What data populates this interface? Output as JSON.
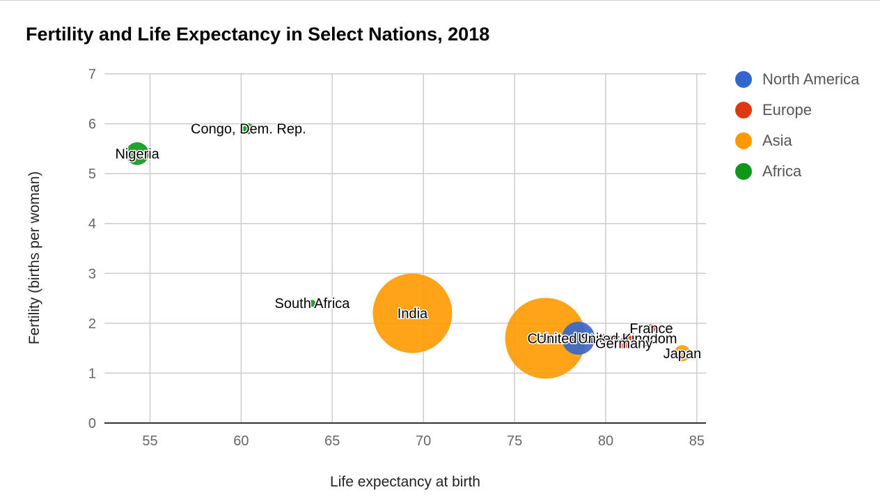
{
  "chart_data": {
    "type": "bubble",
    "title": "Fertility and Life Expectancy in Select Nations, 2018",
    "xlabel": "Life expectancy at birth",
    "ylabel": "Fertility (births per woman)",
    "xlim": [
      52.5,
      85.5
    ],
    "ylim": [
      0,
      7
    ],
    "xticks": [
      55,
      60,
      65,
      70,
      75,
      80,
      85
    ],
    "yticks": [
      0,
      1,
      2,
      3,
      4,
      5,
      6,
      7
    ],
    "grid": true,
    "legend_position": "right",
    "groups": [
      {
        "name": "North America",
        "color": "#3366cc"
      },
      {
        "name": "Europe",
        "color": "#dc3912"
      },
      {
        "name": "Asia",
        "color": "#ff9900"
      },
      {
        "name": "Africa",
        "color": "#109618"
      }
    ],
    "points": [
      {
        "label": "Nigeria",
        "x": 54.3,
        "y": 5.4,
        "group": "Africa",
        "size": 196
      },
      {
        "label": "Congo, Dem. Rep.",
        "x": 60.4,
        "y": 5.9,
        "group": "Africa",
        "size": 84
      },
      {
        "label": "South Africa",
        "x": 63.9,
        "y": 2.4,
        "group": "Africa",
        "size": 58
      },
      {
        "label": "India",
        "x": 69.4,
        "y": 2.2,
        "group": "Asia",
        "size": 1353
      },
      {
        "label": "China",
        "x": 76.7,
        "y": 1.7,
        "group": "Asia",
        "size": 1393
      },
      {
        "label": "United States",
        "x": 78.5,
        "y": 1.7,
        "group": "North America",
        "size": 327
      },
      {
        "label": "United Kingdom",
        "x": 81.2,
        "y": 1.7,
        "group": "Europe",
        "size": 66
      },
      {
        "label": "France",
        "x": 82.5,
        "y": 1.9,
        "group": "Europe",
        "size": 67
      },
      {
        "label": "Germany",
        "x": 81.0,
        "y": 1.6,
        "group": "Europe",
        "size": 83
      },
      {
        "label": "Japan",
        "x": 84.2,
        "y": 1.4,
        "group": "Asia",
        "size": 127
      }
    ]
  }
}
